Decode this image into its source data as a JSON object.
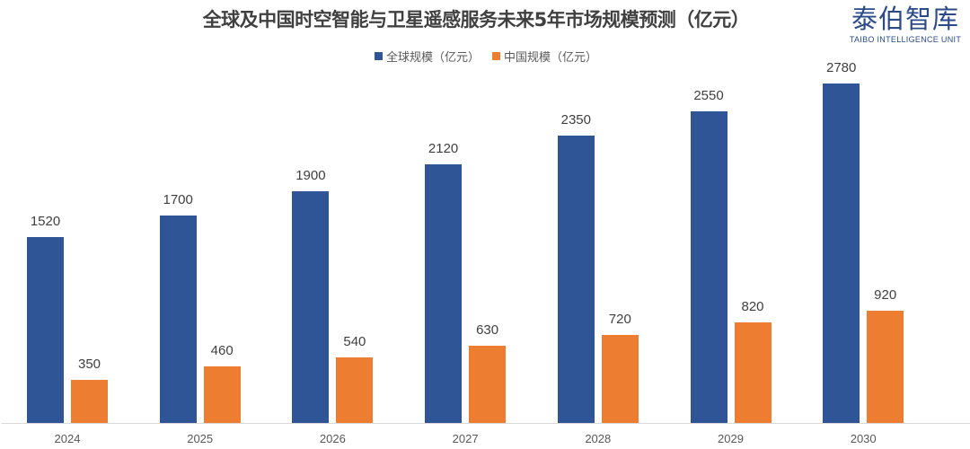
{
  "title": "全球及中国时空智能与卫星遥感服务未来5年市场规模预测（亿元）",
  "logo": {
    "cn": "泰伯智库",
    "en": "TAIBO INTELLIGENCE UNIT"
  },
  "legend": [
    {
      "label": "全球规模（亿元）",
      "color": "#2f5597"
    },
    {
      "label": "中国规模（亿元）",
      "color": "#ed7d31"
    }
  ],
  "chart_data": {
    "type": "bar",
    "title": "全球及中国时空智能与卫星遥感服务未来5年市场规模预测（亿元）",
    "xlabel": "",
    "ylabel": "",
    "categories": [
      "2024",
      "2025",
      "2026",
      "2027",
      "2028",
      "2029",
      "2030"
    ],
    "series": [
      {
        "name": "全球规模（亿元）",
        "color": "#2f5597",
        "values": [
          1520,
          1700,
          1900,
          2120,
          2350,
          2550,
          2780
        ]
      },
      {
        "name": "中国规模（亿元）",
        "color": "#ed7d31",
        "values": [
          350,
          460,
          540,
          630,
          720,
          820,
          920
        ]
      }
    ],
    "ylim": [
      0,
      3000
    ],
    "grid": false,
    "data_labels": true,
    "legend_position": "top"
  }
}
